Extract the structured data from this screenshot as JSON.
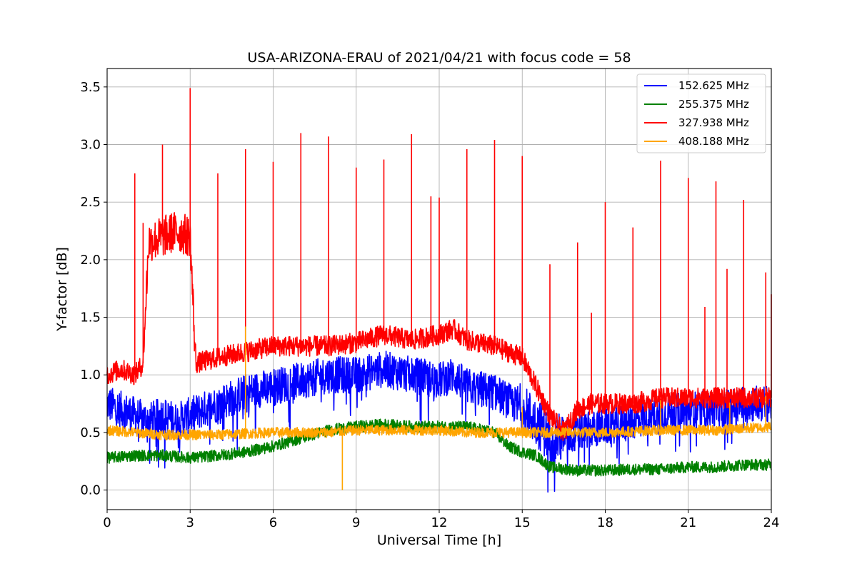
{
  "chart_data": {
    "type": "line",
    "title": "USA-ARIZONA-ERAU of 2021/04/21 with focus code = 58",
    "xlabel": "Universal Time [h]",
    "ylabel": "Y-factor [dB]",
    "xlim": [
      0,
      24
    ],
    "ylim": [
      -0.17,
      3.66
    ],
    "xticks": [
      0,
      3,
      6,
      9,
      12,
      15,
      18,
      21,
      24
    ],
    "xtick_labels": [
      "0",
      "3",
      "6",
      "9",
      "12",
      "15",
      "18",
      "21",
      "24"
    ],
    "yticks": [
      0.0,
      0.5,
      1.0,
      1.5,
      2.0,
      2.5,
      3.0,
      3.5
    ],
    "ytick_labels": [
      "0.0",
      "0.5",
      "1.0",
      "1.5",
      "2.0",
      "2.5",
      "3.0",
      "3.5"
    ],
    "grid": true,
    "legend_position": "top-right",
    "series": [
      {
        "name": "152.625 MHz",
        "color": "#0000ff",
        "x": [
          0,
          0.5,
          1,
          1.5,
          2,
          2.5,
          3,
          3.5,
          4,
          5,
          6,
          7,
          8,
          9,
          10,
          11,
          12,
          12.5,
          13,
          14,
          15,
          15.5,
          16,
          16.5,
          17,
          18,
          19,
          20,
          21,
          22,
          23,
          24
        ],
        "values": [
          0.75,
          0.7,
          0.65,
          0.6,
          0.65,
          0.6,
          0.65,
          0.7,
          0.75,
          0.85,
          0.9,
          0.95,
          1.0,
          1.0,
          1.05,
          1.0,
          0.95,
          1.0,
          0.9,
          0.85,
          0.7,
          0.6,
          0.45,
          0.45,
          0.5,
          0.55,
          0.6,
          0.65,
          0.7,
          0.7,
          0.75,
          0.75
        ]
      },
      {
        "name": "255.375 MHz",
        "color": "#008000",
        "x": [
          0,
          1,
          2,
          3,
          4,
          5,
          6,
          7,
          8,
          9,
          10,
          11,
          12,
          13,
          14,
          14.5,
          15,
          15.5,
          16,
          17,
          18,
          19,
          20,
          21,
          22,
          23,
          24
        ],
        "values": [
          0.28,
          0.3,
          0.3,
          0.28,
          0.3,
          0.33,
          0.38,
          0.45,
          0.52,
          0.55,
          0.57,
          0.55,
          0.55,
          0.55,
          0.5,
          0.38,
          0.33,
          0.3,
          0.2,
          0.17,
          0.17,
          0.18,
          0.18,
          0.2,
          0.2,
          0.22,
          0.22
        ]
      },
      {
        "name": "327.938 MHz",
        "color": "#ff0000",
        "x": [
          0,
          0.5,
          1,
          1.3,
          1.5,
          2,
          2.5,
          3,
          3.2,
          4,
          5,
          6,
          7,
          8,
          9,
          10,
          11,
          12,
          12.5,
          13,
          14,
          15,
          15.5,
          16,
          16.5,
          17,
          17.5,
          18,
          19,
          20,
          21,
          22,
          23,
          24
        ],
        "values": [
          1.0,
          1.05,
          1.0,
          1.1,
          2.15,
          2.2,
          2.25,
          2.2,
          1.1,
          1.15,
          1.2,
          1.25,
          1.25,
          1.25,
          1.28,
          1.35,
          1.3,
          1.35,
          1.4,
          1.3,
          1.25,
          1.15,
          0.9,
          0.65,
          0.5,
          0.7,
          0.75,
          0.75,
          0.75,
          0.8,
          0.8,
          0.8,
          0.8,
          0.8
        ],
        "spikes": [
          [
            1.0,
            2.75
          ],
          [
            1.3,
            2.32
          ],
          [
            2.0,
            3.0
          ],
          [
            3.0,
            3.49
          ],
          [
            4.0,
            2.75
          ],
          [
            5.0,
            2.96
          ],
          [
            6.0,
            2.85
          ],
          [
            7.0,
            3.1
          ],
          [
            8.0,
            3.07
          ],
          [
            9.0,
            2.8
          ],
          [
            10.0,
            2.87
          ],
          [
            11.0,
            3.09
          ],
          [
            11.7,
            2.55
          ],
          [
            12.0,
            2.54
          ],
          [
            13.0,
            2.96
          ],
          [
            14.0,
            3.04
          ],
          [
            15.0,
            2.9
          ],
          [
            16.0,
            1.96
          ],
          [
            17.0,
            2.15
          ],
          [
            17.5,
            1.54
          ],
          [
            18.0,
            2.5
          ],
          [
            19.0,
            2.28
          ],
          [
            20.0,
            2.86
          ],
          [
            21.0,
            2.71
          ],
          [
            21.6,
            1.59
          ],
          [
            22.0,
            2.68
          ],
          [
            22.4,
            1.92
          ],
          [
            23.0,
            2.52
          ],
          [
            23.8,
            1.89
          ],
          [
            24.0,
            1.7
          ]
        ]
      },
      {
        "name": "408.188 MHz",
        "color": "#ffa500",
        "x": [
          0,
          2,
          4,
          6,
          8,
          9,
          10,
          11,
          12,
          13,
          14,
          15,
          16,
          18,
          20,
          22,
          24
        ],
        "values": [
          0.52,
          0.48,
          0.48,
          0.5,
          0.5,
          0.52,
          0.52,
          0.52,
          0.52,
          0.5,
          0.5,
          0.5,
          0.5,
          0.5,
          0.52,
          0.52,
          0.55
        ],
        "spikes": [
          [
            5.0,
            1.42
          ],
          [
            8.5,
            0.0
          ],
          [
            15.0,
            0.72
          ],
          [
            20.0,
            0.78
          ],
          [
            22.5,
            0.76
          ],
          [
            23.8,
            0.82
          ]
        ]
      }
    ]
  }
}
